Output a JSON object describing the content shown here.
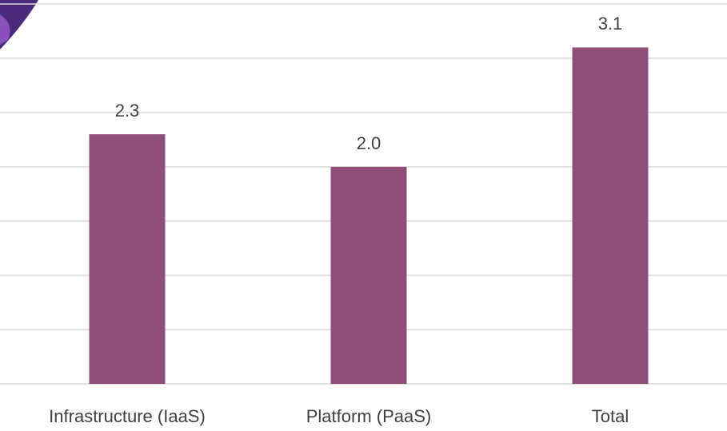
{
  "chart_data": {
    "type": "bar",
    "categories": [
      "Infrastructure (IaaS)",
      "Platform (PaaS)",
      "Total"
    ],
    "values": [
      2.3,
      2.0,
      3.1
    ],
    "value_labels": [
      "2.3",
      "2.0",
      "3.1"
    ],
    "color": "#8f4f78",
    "ylim": [
      0,
      3.5
    ],
    "yticks": [
      0,
      0.5,
      1,
      1.5,
      2,
      2.5,
      3,
      3.5
    ],
    "grid": true
  }
}
